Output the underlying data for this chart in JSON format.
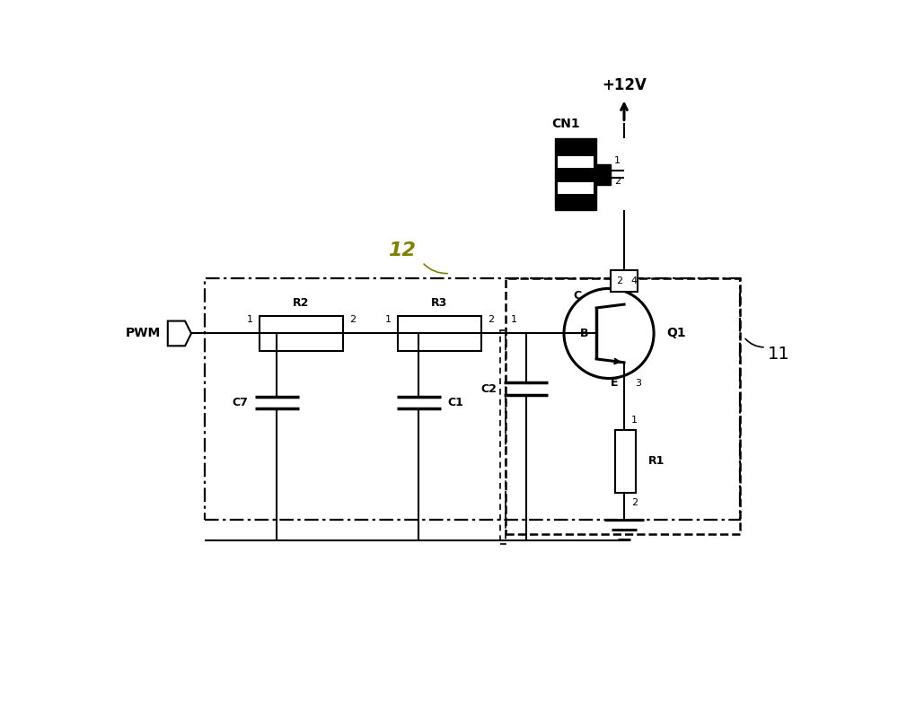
{
  "bg_color": "#ffffff",
  "line_color": "#000000",
  "label_color_12": "#808000",
  "figsize": [
    10.0,
    8.11
  ],
  "dpi": 100,
  "pwm_label": "PWM",
  "v12_label": "+12V",
  "cn1_label": "CN1",
  "q1_label": "Q1",
  "r1_label": "R1",
  "r2_label": "R2",
  "r3_label": "R3",
  "c1_label": "C1",
  "c2_label": "C2",
  "c7_label": "C7",
  "label_11": "11",
  "label_12": "12"
}
